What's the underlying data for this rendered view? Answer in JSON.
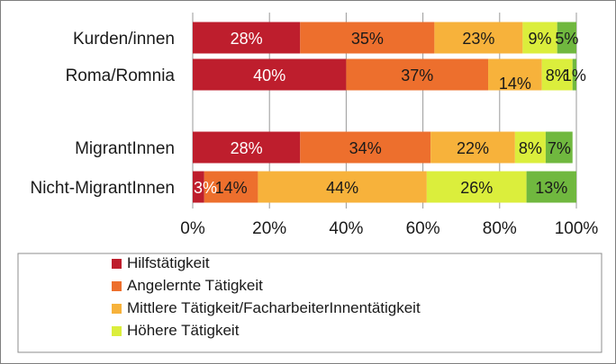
{
  "chart_data": {
    "type": "bar",
    "orientation": "horizontal",
    "stacked": true,
    "title": "",
    "xlabel": "",
    "ylabel": "",
    "xlim": [
      0,
      100
    ],
    "grid": "vertical",
    "legend_position": "bottom",
    "categories": [
      "Kurden/innen",
      "Roma/Romnia",
      "MigrantInnen",
      "Nicht-MigrantInnen"
    ],
    "x_ticks": [
      "0%",
      "20%",
      "40%",
      "60%",
      "80%",
      "100%"
    ],
    "series": [
      {
        "name": "Hilfstätigkeit",
        "color": "#be1e2d",
        "label_color": "#ffffff",
        "values": [
          28,
          40,
          28,
          3
        ]
      },
      {
        "name": "Angelernte Tätigkeit",
        "color": "#ed6f2d",
        "label_color": "#1a1a1a",
        "values": [
          35,
          37,
          34,
          14
        ]
      },
      {
        "name": "Mittlere Tätigkeit/FacharbeiterInnentätigkeit",
        "color": "#f7b23b",
        "label_color": "#1a1a1a",
        "values": [
          23,
          14,
          22,
          44
        ]
      },
      {
        "name": "Höhere Tätigkeit",
        "color": "#dbee3c",
        "label_color": "#1a1a1a",
        "values": [
          9,
          8,
          8,
          26
        ]
      },
      {
        "name": "",
        "color": "#70b83f",
        "label_color": "#1a1a1a",
        "values": [
          5,
          1,
          7,
          13
        ]
      }
    ],
    "data_labels": [
      [
        "28%",
        "35%",
        "23%",
        "9%",
        "5%"
      ],
      [
        "40%",
        "37%",
        "14%",
        "8%",
        "1%"
      ],
      [
        "28%",
        "34%",
        "22%",
        "8%",
        "7%"
      ],
      [
        "3%",
        "14%",
        "44%",
        "26%",
        "13%"
      ]
    ],
    "legend_entries": [
      "Hilfstätigkeit",
      "Angelernte Tätigkeit",
      "Mittlere Tätigkeit/FacharbeiterInnentätigkeit",
      "Höhere Tätigkeit"
    ]
  }
}
